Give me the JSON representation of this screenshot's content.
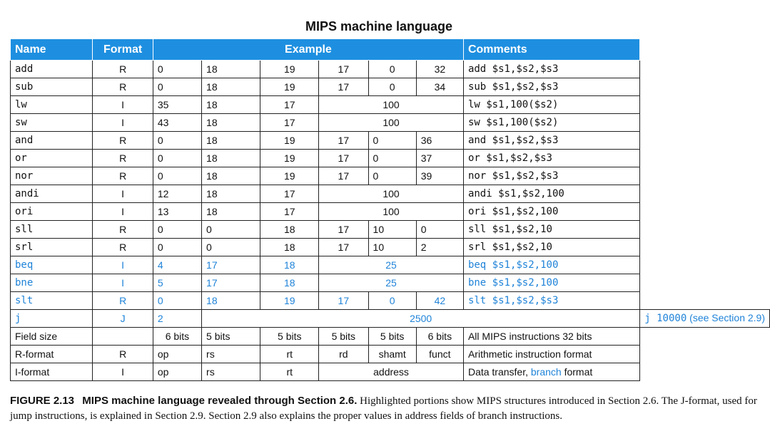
{
  "title": "MIPS machine language",
  "headers": {
    "name": "Name",
    "format": "Format",
    "example": "Example",
    "comments": "Comments"
  },
  "rows": [
    {
      "name": "add",
      "format": "R",
      "f1": "0",
      "f2": "18",
      "f3": "19",
      "f4": "17",
      "f5": "0",
      "f6": "32",
      "comment": "add  $s1,$s2,$s3"
    },
    {
      "name": "sub",
      "format": "R",
      "f1": "0",
      "f2": "18",
      "f3": "19",
      "f4": "17",
      "f5": "0",
      "f6": "34",
      "comment": "sub  $s1,$s2,$s3"
    },
    {
      "name": "lw",
      "format": "I",
      "f1": "35",
      "f2": "18",
      "f3": "17",
      "imm": "100",
      "comment": "lw  $s1,100($s2)"
    },
    {
      "name": "sw",
      "format": "I",
      "f1": "43",
      "f2": "18",
      "f3": "17",
      "imm": "100",
      "comment": "sw  $s1,100($s2)"
    },
    {
      "name": "and",
      "format": "R",
      "f1": "0",
      "f2": "18",
      "f3": "19",
      "f4": "17",
      "f5": "0",
      "f6": "36",
      "comment": "and  $s1,$s2,$s3"
    },
    {
      "name": "or",
      "format": "R",
      "f1": "0",
      "f2": "18",
      "f3": "19",
      "f4": "17",
      "f5": "0",
      "f6": "37",
      "comment": "or   $s1,$s2,$s3"
    },
    {
      "name": "nor",
      "format": "R",
      "f1": "0",
      "f2": "18",
      "f3": "19",
      "f4": "17",
      "f5": "0",
      "f6": "39",
      "comment": "nor  $s1,$s2,$s3"
    },
    {
      "name": "andi",
      "format": "I",
      "f1": "12",
      "f2": "18",
      "f3": "17",
      "imm": "100",
      "comment": "andi $s1,$s2,100"
    },
    {
      "name": "ori",
      "format": "I",
      "f1": "13",
      "f2": "18",
      "f3": "17",
      "imm": "100",
      "comment": "ori  $s1,$s2,100"
    },
    {
      "name": "sll",
      "format": "R",
      "f1": "0",
      "f2": "0",
      "f3": "18",
      "f4": "17",
      "f5": "10",
      "f6": "0",
      "comment": "sll  $s1,$s2,10"
    },
    {
      "name": "srl",
      "format": "R",
      "f1": "0",
      "f2": "0",
      "f3": "18",
      "f4": "17",
      "f5": "10",
      "f6": "2",
      "comment": "srl  $s1,$s2,10"
    },
    {
      "name": "beq",
      "format": "I",
      "f1": "4",
      "f2": "17",
      "f3": "18",
      "imm": "25",
      "comment": "beq  $s1,$s2,100"
    },
    {
      "name": "bne",
      "format": "I",
      "f1": "5",
      "f2": "17",
      "f3": "18",
      "imm": "25",
      "comment": "bne  $s1,$s2,100"
    },
    {
      "name": "slt",
      "format": "R",
      "f1": "0",
      "f2": "18",
      "f3": "19",
      "f4": "17",
      "f5": "0",
      "f6": "42",
      "comment": "slt  $s1,$s2,$s3"
    },
    {
      "name": "j",
      "format": "J",
      "f1": "2",
      "target": "2500",
      "comment_mono": "j 10000",
      "comment_sans": " (see Section 2.9)"
    }
  ],
  "field_size": {
    "label": "Field size",
    "f1": "6 bits",
    "f2": "5 bits",
    "f3": "5 bits",
    "f4": "5 bits",
    "f5": "5 bits",
    "f6": "6 bits",
    "comment": "All MIPS instructions 32 bits"
  },
  "r_format": {
    "label": "R-format",
    "format": "R",
    "f1": "op",
    "f2": "rs",
    "f3": "rt",
    "f4": "rd",
    "f5": "shamt",
    "f6": "funct",
    "comment": "Arithmetic instruction format"
  },
  "i_format": {
    "label": "I-format",
    "format": "I",
    "f1": "op",
    "f2": "rs",
    "f3": "rt",
    "addr": "address",
    "comment_a": "Data transfer, ",
    "comment_b": "branch",
    "comment_c": " format"
  },
  "caption": {
    "label": "FIGURE 2.13",
    "heading": "MIPS machine language revealed through Section 2.6.",
    "text": " Highlighted portions show MIPS structures introduced in Section 2.6. The J-format, used for jump instructions, is explained in Section 2.9. Section 2.9 also explains the proper values in address fields of branch instructions."
  },
  "colors": {
    "header_bg": "#1e8fe0",
    "highlight": "#1f83d8"
  }
}
